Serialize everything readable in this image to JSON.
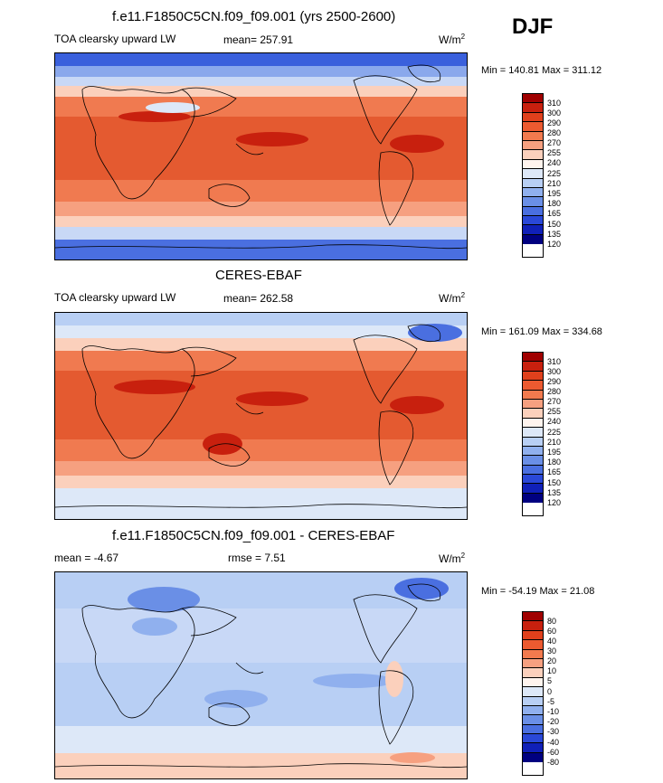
{
  "season": "DJF",
  "units_prefix": "W/m",
  "units_exp": "2",
  "panels": [
    {
      "title": "f.e11.F1850C5CN.f09_f09.001 (yrs 2500-2600)",
      "left_label": "TOA clearsky upward LW",
      "center_label": "mean= 257.91",
      "minmax": "Min = 140.81 Max = 311.12"
    },
    {
      "title": "CERES-EBAF",
      "left_label": "TOA clearsky upward LW",
      "center_label": "mean= 262.58",
      "minmax": "Min = 161.09 Max = 334.68"
    },
    {
      "title": "f.e11.F1850C5CN.f09_f09.001 - CERES-EBAF",
      "left_label": "mean =  -4.67",
      "center_label": "rmse =   7.51",
      "minmax": "Min = -54.19 Max =  21.08"
    }
  ],
  "colorbar_main": {
    "levels": [
      "310",
      "300",
      "290",
      "280",
      "270",
      "255",
      "240",
      "225",
      "210",
      "195",
      "180",
      "165",
      "150",
      "135",
      "120"
    ],
    "colors": [
      "#a00000",
      "#c8200e",
      "#e0401c",
      "#ec5a30",
      "#f27a4e",
      "#f6a080",
      "#fbd0bc",
      "#fff4ee",
      "#dde8f8",
      "#b8cff4",
      "#90b0ee",
      "#6a8fe6",
      "#4a6fe0",
      "#2a48d8",
      "#1020b8",
      "#000080"
    ]
  },
  "colorbar_diff": {
    "levels": [
      "80",
      "60",
      "40",
      "30",
      "20",
      "10",
      "5",
      "0",
      "-5",
      "-10",
      "-20",
      "-30",
      "-40",
      "-60",
      "-80"
    ],
    "colors": [
      "#a00000",
      "#c8200e",
      "#e0401c",
      "#ec5a30",
      "#f27a4e",
      "#f6a080",
      "#fbd0bc",
      "#fff4ee",
      "#dde8f8",
      "#b8cff4",
      "#90b0ee",
      "#6a8fe6",
      "#4a6fe0",
      "#2a48d8",
      "#1020b8",
      "#000080"
    ]
  }
}
